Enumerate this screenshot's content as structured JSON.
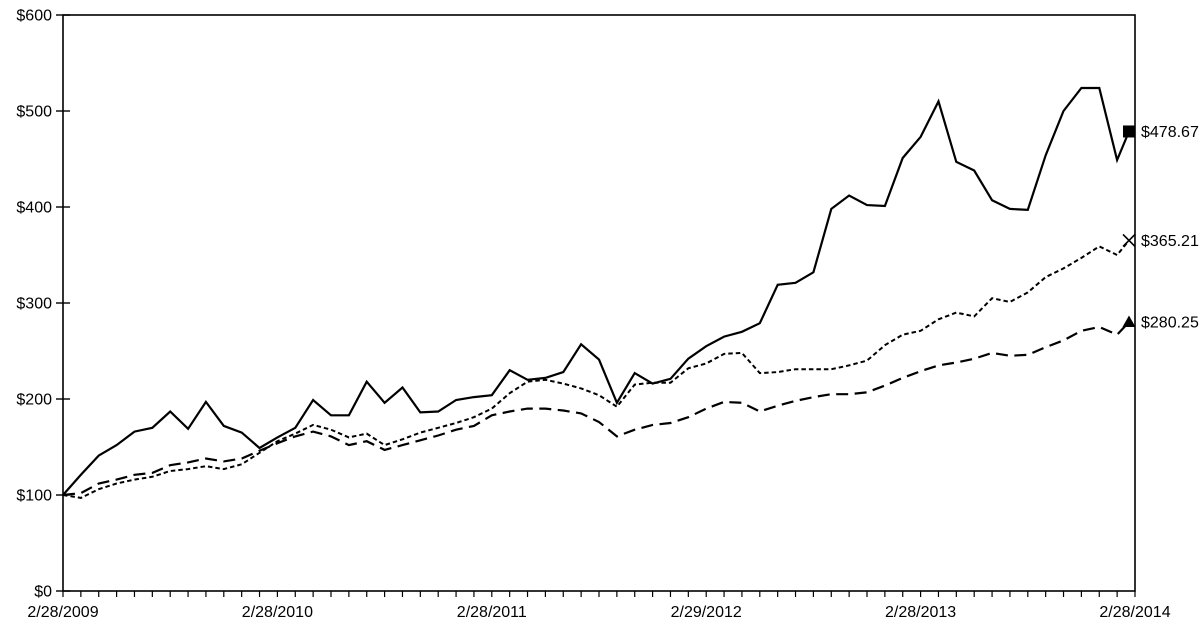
{
  "page": {
    "background": "#ffffff",
    "ink_color": "#000000"
  },
  "chart_data": {
    "type": "line",
    "grid": "off",
    "legend": "none",
    "frame": "full-box",
    "x_axis": {
      "tick_labels": [
        "2/28/2009",
        "2/28/2010",
        "2/28/2011",
        "2/29/2012",
        "2/28/2013",
        "2/28/2014"
      ],
      "minor_ticks": "monthly",
      "range_months": 60
    },
    "y_axis": {
      "tick_labels": [
        "$0",
        "$100",
        "$200",
        "$300",
        "$400",
        "$500",
        "$600"
      ],
      "min": 0,
      "max": 600,
      "step": 100
    },
    "series": [
      {
        "name": "series-solid",
        "line_style": "solid",
        "end_marker": "filled-square",
        "end_value": 478.67,
        "end_label": "$478.67",
        "values": [
          100,
          121,
          141,
          152,
          166,
          170,
          187,
          169,
          197,
          172,
          165,
          149,
          160,
          170,
          199,
          183,
          183,
          218,
          196,
          212,
          186,
          187,
          199,
          202,
          204,
          230,
          220,
          222,
          228,
          257,
          241,
          196,
          227,
          216,
          221,
          242,
          255,
          265,
          270,
          279,
          319,
          321,
          332,
          398,
          412,
          402,
          401,
          451,
          473,
          510,
          447,
          438,
          407,
          398,
          397,
          454,
          500,
          524,
          524,
          449,
          478.67
        ]
      },
      {
        "name": "series-short-dash",
        "line_style": "short-dash",
        "end_marker": "x-cross",
        "end_value": 365.21,
        "end_label": "$365.21",
        "values": [
          100,
          97,
          106,
          112,
          116,
          119,
          125,
          127,
          130,
          127,
          132,
          144,
          156,
          164,
          173,
          168,
          160,
          164,
          152,
          158,
          165,
          170,
          175,
          181,
          190,
          206,
          218,
          220,
          216,
          211,
          204,
          192,
          215,
          217,
          217,
          232,
          237,
          247,
          248,
          227,
          228,
          231,
          231,
          231,
          235,
          240,
          256,
          267,
          271,
          283,
          290,
          286,
          305,
          301,
          311,
          327,
          336,
          347,
          359,
          350,
          365.21
        ]
      },
      {
        "name": "series-long-dash",
        "line_style": "long-dash",
        "end_marker": "filled-triangle",
        "end_value": 280.25,
        "end_label": "$280.25",
        "values": [
          100,
          102,
          112,
          116,
          121,
          123,
          131,
          134,
          138,
          135,
          138,
          146,
          154,
          161,
          166,
          161,
          152,
          156,
          147,
          152,
          157,
          162,
          168,
          172,
          183,
          187,
          190,
          190,
          188,
          185,
          176,
          161,
          168,
          173,
          175,
          181,
          190,
          197,
          196,
          187,
          193,
          198,
          202,
          205,
          205,
          207,
          214,
          222,
          229,
          235,
          238,
          242,
          248,
          245,
          246,
          254,
          261,
          271,
          275,
          267,
          280.25
        ]
      }
    ]
  }
}
